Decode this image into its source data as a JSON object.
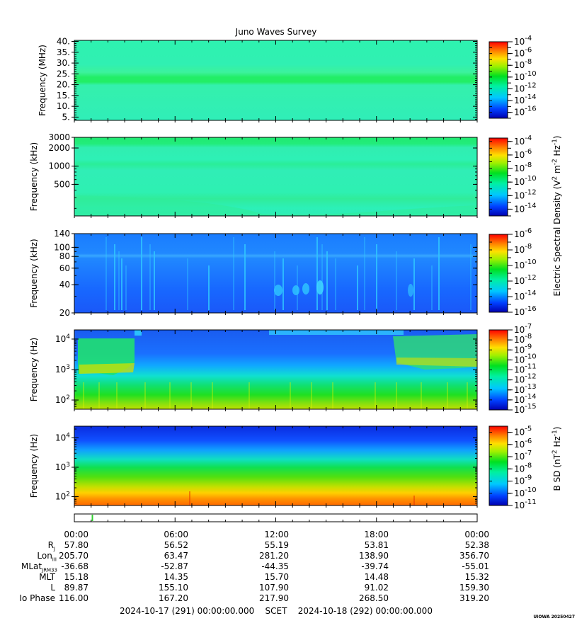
{
  "title": "Juno Waves Survey",
  "footer": "2024-10-17 (291) 00:00:00.000    SCET    2024-10-18 (292) 00:00:00.000",
  "stamp": "UIOWA 20250427",
  "colorbar_labels": {
    "electric": "Electric Spectral Density (V2 m-2 Hz-1)",
    "magnetic": "B SD (nT2 Hz-1)"
  },
  "ephemeris": {
    "labels": [
      "R",
      "Lon",
      "MLat",
      "MLT",
      "L",
      "Io Phase"
    ],
    "label_subs": [
      "J",
      "III",
      "JRM33",
      "",
      "",
      ""
    ],
    "times": [
      "00:00",
      "06:00",
      "12:00",
      "18:00",
      "00:00"
    ],
    "rows": [
      [
        "57.80",
        "56.52",
        "55.19",
        "53.81",
        "52.38"
      ],
      [
        "205.70",
        "63.47",
        "281.20",
        "138.90",
        "356.70"
      ],
      [
        "-36.68",
        "-52.87",
        "-44.35",
        "-39.74",
        "-55.01"
      ],
      [
        "15.18",
        "14.35",
        "15.70",
        "14.48",
        "15.32"
      ],
      [
        "89.87",
        "155.10",
        "107.90",
        "91.02",
        "159.30"
      ],
      [
        "116.00",
        "167.20",
        "217.90",
        "268.50",
        "319.20"
      ]
    ]
  },
  "chart_data": [
    {
      "type": "heatmap",
      "title": "Juno Waves Survey",
      "ylabel": "Frequency (MHz)",
      "yscale": "linear",
      "ylim": [
        3.5,
        40.5
      ],
      "yticks": [
        5,
        10,
        15,
        20,
        25,
        30,
        35,
        40
      ],
      "ytick_labels": [
        "5.",
        "10.",
        "15.",
        "20.",
        "25.",
        "30.",
        "35.",
        "40."
      ],
      "colorbar": {
        "scale": "log",
        "range": [
          -17,
          -4
        ],
        "ticks": [
          -16,
          -14,
          -12,
          -10,
          -8,
          -6,
          -4
        ],
        "tick_labels": [
          "10-16",
          "10-14",
          "10-12",
          "10-10",
          "10-8",
          "10-6",
          "10-4"
        ]
      }
    },
    {
      "type": "heatmap",
      "ylabel": "Frequency (kHz)",
      "yscale": "log",
      "ylim": [
        150,
        3000
      ],
      "yticks": [
        500,
        1000,
        2000,
        3000
      ],
      "ytick_labels": [
        "500",
        "1000",
        "2000",
        "3000"
      ],
      "colorbar": {
        "scale": "log",
        "range": [
          -15,
          -3.5
        ],
        "ticks": [
          -14,
          -12,
          -10,
          -8,
          -6,
          -4
        ],
        "tick_labels": [
          "10-14",
          "10-12",
          "10-10",
          "10-8",
          "10-6",
          "10-4"
        ]
      }
    },
    {
      "type": "heatmap",
      "ylabel": "Frequency (kHz)",
      "yscale": "log",
      "ylim": [
        20,
        140
      ],
      "yticks": [
        20,
        40,
        60,
        80,
        100,
        140
      ],
      "ytick_labels": [
        "20",
        "40",
        "60",
        "80",
        "100",
        "140"
      ],
      "colorbar": {
        "scale": "log",
        "range": [
          -16,
          -6
        ],
        "ticks": [
          -16,
          -14,
          -12,
          -10,
          -8,
          -6
        ],
        "tick_labels": [
          "10-16",
          "10-14",
          "10-12",
          "10-10",
          "10-8",
          "10-6"
        ]
      }
    },
    {
      "type": "heatmap",
      "ylabel": "Frequency (Hz)",
      "yscale": "log",
      "ylim": [
        50,
        20000
      ],
      "yticks": [
        100,
        1000,
        10000
      ],
      "ytick_labels": [
        "10^2",
        "10^3",
        "10^4"
      ],
      "colorbar": {
        "scale": "log",
        "range": [
          -15,
          -7
        ],
        "ticks": [
          -15,
          -14,
          -13,
          -12,
          -11,
          -10,
          -9,
          -8,
          -7
        ],
        "tick_labels": [
          "10-15",
          "10-14",
          "10-13",
          "10-12",
          "10-11",
          "10-10",
          "10-9",
          "10-8",
          "10-7"
        ]
      }
    },
    {
      "type": "heatmap",
      "ylabel": "Frequency (Hz)",
      "yscale": "log",
      "ylim": [
        50,
        25000
      ],
      "yticks": [
        100,
        1000,
        10000
      ],
      "ytick_labels": [
        "10^2",
        "10^3",
        "10^4"
      ],
      "colorbar": {
        "scale": "log",
        "range": [
          -11,
          -4.5
        ],
        "ticks": [
          -11,
          -10,
          -9,
          -8,
          -7,
          -6,
          -5
        ],
        "tick_labels": [
          "10-11",
          "10-10",
          "10-9",
          "10-8",
          "10-7",
          "10-6",
          "10-5"
        ]
      }
    }
  ]
}
